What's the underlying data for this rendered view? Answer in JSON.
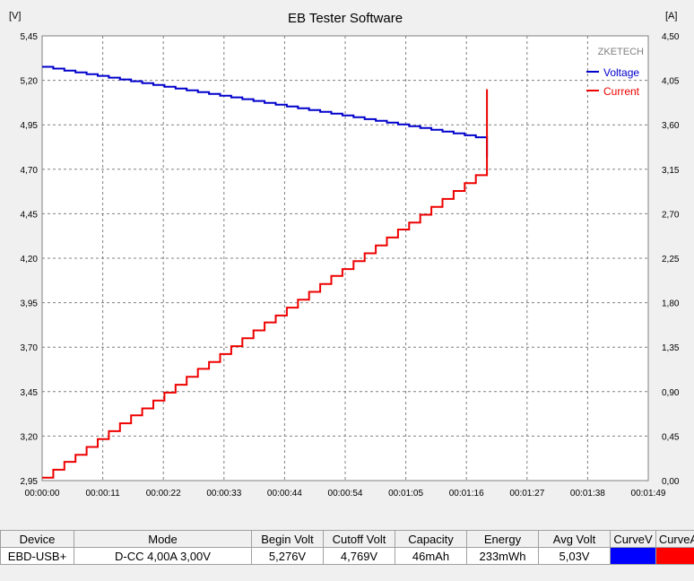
{
  "window_title": "EB Tester Software",
  "watermark": "ZKETECH",
  "colors": {
    "voltage": "#0000cc",
    "current": "#ee0000",
    "plot_bg": "#ffffff",
    "grid": "#808080"
  },
  "chart_data": {
    "type": "line",
    "title": "EB Tester Software",
    "y_left_unit": "[V]",
    "y_right_unit": "[A]",
    "x_ticks": [
      "00:00:00",
      "00:00:11",
      "00:00:22",
      "00:00:33",
      "00:00:44",
      "00:00:54",
      "00:01:05",
      "00:01:16",
      "00:01:27",
      "00:01:38",
      "00:01:49"
    ],
    "y_left_ticks": [
      "5,45",
      "5,20",
      "4,95",
      "4,70",
      "4,45",
      "4,20",
      "3,95",
      "3,70",
      "3,45",
      "3,20",
      "2,95"
    ],
    "y_right_ticks": [
      "4,50",
      "4,05",
      "3,60",
      "3,15",
      "2,70",
      "2,25",
      "1,80",
      "1,35",
      "0,90",
      "0,45",
      "0,00"
    ],
    "x_range_seconds": [
      0,
      109
    ],
    "y_left_range": [
      2.95,
      5.45
    ],
    "y_right_range": [
      0,
      4.5
    ],
    "grid": true,
    "legend_position": "top-right",
    "series": [
      {
        "name": "Voltage",
        "axis": "left",
        "x": [
          0,
          2,
          4,
          6,
          8,
          10,
          12,
          14,
          16,
          18,
          20,
          22,
          24,
          26,
          28,
          30,
          32,
          34,
          36,
          38,
          40,
          42,
          44,
          46,
          48,
          50,
          52,
          54,
          56,
          58,
          60,
          62,
          64,
          66,
          68,
          70,
          72,
          74,
          76,
          78,
          80
        ],
        "y": [
          5.276,
          5.266,
          5.255,
          5.245,
          5.235,
          5.225,
          5.215,
          5.205,
          5.195,
          5.184,
          5.174,
          5.164,
          5.154,
          5.144,
          5.134,
          5.124,
          5.114,
          5.104,
          5.094,
          5.084,
          5.073,
          5.063,
          5.053,
          5.043,
          5.033,
          5.023,
          5.013,
          5.003,
          4.993,
          4.982,
          4.972,
          4.962,
          4.952,
          4.942,
          4.932,
          4.922,
          4.912,
          4.902,
          4.891,
          4.88,
          4.769
        ]
      },
      {
        "name": "Current",
        "axis": "right",
        "x": [
          0,
          2,
          4,
          6,
          8,
          10,
          12,
          14,
          16,
          18,
          20,
          22,
          24,
          26,
          28,
          30,
          32,
          34,
          36,
          38,
          40,
          42,
          44,
          46,
          48,
          50,
          52,
          54,
          56,
          58,
          60,
          62,
          64,
          66,
          68,
          70,
          72,
          74,
          76,
          78,
          80
        ],
        "y": [
          0.03,
          0.11,
          0.19,
          0.26,
          0.34,
          0.42,
          0.5,
          0.58,
          0.66,
          0.73,
          0.81,
          0.89,
          0.97,
          1.05,
          1.13,
          1.2,
          1.28,
          1.36,
          1.44,
          1.52,
          1.6,
          1.67,
          1.75,
          1.83,
          1.91,
          1.99,
          2.07,
          2.14,
          2.22,
          2.3,
          2.38,
          2.46,
          2.54,
          2.61,
          2.69,
          2.77,
          2.85,
          2.93,
          3.01,
          3.09,
          3.96
        ]
      }
    ]
  },
  "info_table": {
    "headers": [
      "Device",
      "Mode",
      "Begin Volt",
      "Cutoff Volt",
      "Capacity",
      "Energy",
      "Avg Volt",
      "CurveV",
      "CurveA"
    ],
    "row": {
      "device": "EBD-USB+",
      "mode": "D-CC  4,00A  3,00V",
      "begin_volt": "5,276V",
      "cutoff_volt": "4,769V",
      "capacity": "46mAh",
      "energy": "233mWh",
      "avg_volt": "5,03V"
    },
    "curve_v_color": "#0000ff",
    "curve_a_color": "#ff0000"
  }
}
